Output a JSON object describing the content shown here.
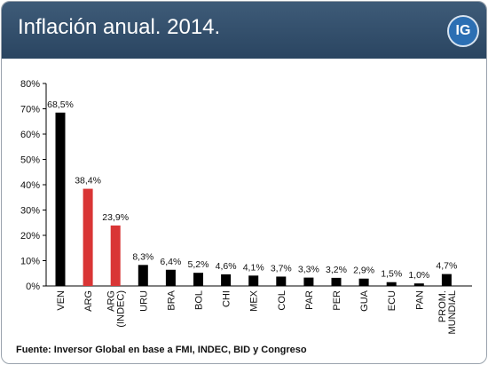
{
  "header": {
    "title": "Inflación anual. 2014.",
    "logo_text": "IG"
  },
  "colors": {
    "header_background": "#344f6b",
    "bar_default": "#000000",
    "bar_highlight": "#d93535"
  },
  "footer": {
    "source": "Fuente: Inversor Global en base a FMI, INDEC, BID y Congreso"
  },
  "chart_data": {
    "type": "bar",
    "categories": [
      "VEN",
      "ARG",
      "ARG (INDEC)",
      "URU",
      "BRA",
      "BOL",
      "CHI",
      "MEX",
      "COL",
      "PAR",
      "PER",
      "GUA",
      "ECU",
      "PAN",
      "PROM. MUNDIAL"
    ],
    "category_lines": [
      [
        "VEN"
      ],
      [
        "ARG"
      ],
      [
        "ARG",
        "(INDEC)"
      ],
      [
        "URU"
      ],
      [
        "BRA"
      ],
      [
        "BOL"
      ],
      [
        "CHI"
      ],
      [
        "MEX"
      ],
      [
        "COL"
      ],
      [
        "PAR"
      ],
      [
        "PER"
      ],
      [
        "GUA"
      ],
      [
        "ECU"
      ],
      [
        "PAN"
      ],
      [
        "PROM.",
        "MUNDIAL"
      ]
    ],
    "values": [
      68.5,
      38.4,
      23.9,
      8.3,
      6.4,
      5.2,
      4.6,
      4.1,
      3.7,
      3.3,
      3.2,
      2.9,
      1.5,
      1.0,
      4.7
    ],
    "value_labels": [
      "68,5%",
      "38,4%",
      "23,9%",
      "8,3%",
      "6,4%",
      "5,2%",
      "4,6%",
      "4,1%",
      "3,7%",
      "3,3%",
      "3,2%",
      "2,9%",
      "1,5%",
      "1,0%",
      "4,7%"
    ],
    "highlight": [
      "ARG",
      "ARG (INDEC)"
    ],
    "ylim": [
      0,
      80
    ],
    "yticks": [
      0,
      10,
      20,
      30,
      40,
      50,
      60,
      70,
      80
    ],
    "ytick_labels": [
      "0%",
      "10%",
      "20%",
      "30%",
      "40%",
      "50%",
      "60%",
      "70%",
      "80%"
    ],
    "grid": false,
    "legend": false,
    "xlabel": "",
    "ylabel": ""
  }
}
